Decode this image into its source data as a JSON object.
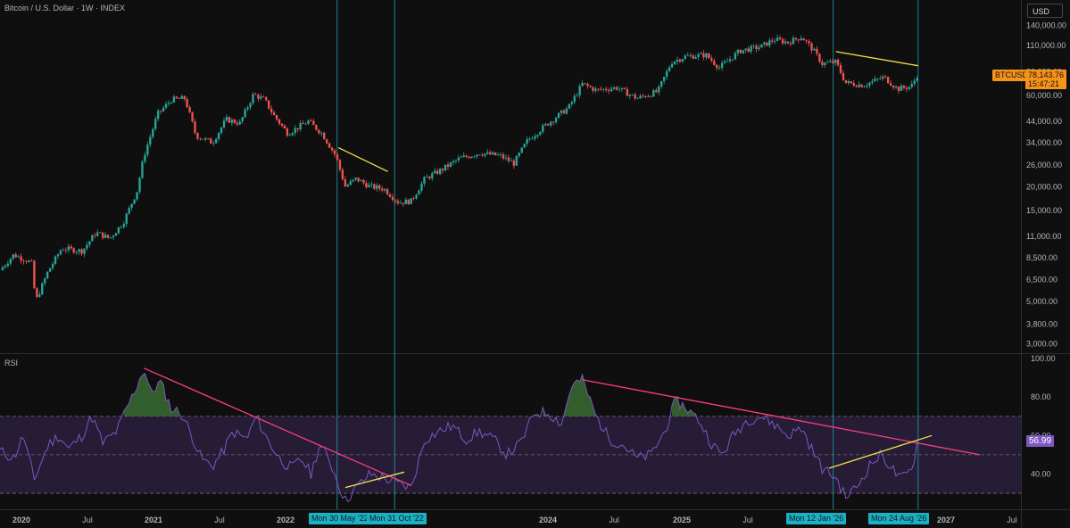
{
  "header": {
    "symbol_title": "Bitcoin / U.S. Dollar · 1W · INDEX",
    "currency": "USD"
  },
  "price_tags": {
    "symbol": "BTCUSD",
    "price": "78,143.76",
    "countdown": "15:47:21"
  },
  "rsi_panel": {
    "title": "RSI",
    "value_label": "56.99"
  },
  "colors": {
    "background": "#0f0f0f",
    "up_candle": "#26a69a",
    "down_candle": "#ef5350",
    "rsi_line": "#7e57c2",
    "rsi_band": "#2a1f3d",
    "vertical_markers": "#1e90a0",
    "trendline_yellow": "#f5e14a",
    "trendline_pink": "#ff3d7f",
    "price_tag": "#f7931a",
    "date_tag": "#1cb0c6"
  },
  "x_axis_labels": [
    "2020",
    "Jul",
    "2021",
    "Jul",
    "2022",
    "Jul",
    "2024",
    "Jul",
    "2025",
    "Jul",
    "2027",
    "Jul"
  ],
  "date_markers": [
    "Mon 30 May '22",
    "Mon 31 Oct '22",
    "Mon 12 Jan '26",
    "Mon 24 Aug '26"
  ],
  "chart_data": [
    {
      "type": "candlestick",
      "title": "Bitcoin / U.S. Dollar · 1W · INDEX",
      "scale": "log",
      "y_ticks": [
        "140,000.00",
        "110,000.00",
        "80,000.00",
        "60,000.00",
        "44,000.00",
        "34,000.00",
        "26,000.00",
        "20,000.00",
        "15,000.00",
        "11,000.00",
        "8,500.00",
        "6,500.00",
        "5,000.00",
        "3,800.00",
        "3,000.00"
      ],
      "y_tick_values": [
        140000,
        110000,
        80000,
        60000,
        44000,
        34000,
        26000,
        20000,
        15000,
        11000,
        8500,
        6500,
        5000,
        3800,
        3000
      ],
      "ylim": [
        2800,
        150000
      ],
      "x_range_years": [
        2019.95,
        2027.4
      ],
      "last_close": 78143.76,
      "approx_weekly_closes": [
        {
          "t": 2019.95,
          "close": 7300
        },
        {
          "t": 2020.05,
          "close": 8800
        },
        {
          "t": 2020.18,
          "close": 8000
        },
        {
          "t": 2020.21,
          "close": 5000
        },
        {
          "t": 2020.3,
          "close": 7200
        },
        {
          "t": 2020.4,
          "close": 9500
        },
        {
          "t": 2020.55,
          "close": 9200
        },
        {
          "t": 2020.65,
          "close": 11500
        },
        {
          "t": 2020.75,
          "close": 10700
        },
        {
          "t": 2020.85,
          "close": 13000
        },
        {
          "t": 2020.95,
          "close": 19000
        },
        {
          "t": 2021.0,
          "close": 29000
        },
        {
          "t": 2021.1,
          "close": 48000
        },
        {
          "t": 2021.2,
          "close": 57000
        },
        {
          "t": 2021.3,
          "close": 58000
        },
        {
          "t": 2021.38,
          "close": 37000
        },
        {
          "t": 2021.5,
          "close": 34000
        },
        {
          "t": 2021.6,
          "close": 45000
        },
        {
          "t": 2021.7,
          "close": 43000
        },
        {
          "t": 2021.8,
          "close": 61000
        },
        {
          "t": 2021.88,
          "close": 57000
        },
        {
          "t": 2021.95,
          "close": 47000
        },
        {
          "t": 2022.05,
          "close": 38000
        },
        {
          "t": 2022.2,
          "close": 44000
        },
        {
          "t": 2022.3,
          "close": 38000
        },
        {
          "t": 2022.4,
          "close": 29000
        },
        {
          "t": 2022.47,
          "close": 20000
        },
        {
          "t": 2022.55,
          "close": 22000
        },
        {
          "t": 2022.65,
          "close": 20000
        },
        {
          "t": 2022.75,
          "close": 19500
        },
        {
          "t": 2022.86,
          "close": 16500
        },
        {
          "t": 2022.95,
          "close": 16800
        },
        {
          "t": 2023.05,
          "close": 22000
        },
        {
          "t": 2023.15,
          "close": 24000
        },
        {
          "t": 2023.3,
          "close": 28000
        },
        {
          "t": 2023.45,
          "close": 30000
        },
        {
          "t": 2023.6,
          "close": 29000
        },
        {
          "t": 2023.7,
          "close": 26500
        },
        {
          "t": 2023.8,
          "close": 35000
        },
        {
          "t": 2023.95,
          "close": 43000
        },
        {
          "t": 2024.1,
          "close": 52000
        },
        {
          "t": 2024.2,
          "close": 69000
        },
        {
          "t": 2024.3,
          "close": 64000
        },
        {
          "t": 2024.45,
          "close": 66000
        },
        {
          "t": 2024.6,
          "close": 58000
        },
        {
          "t": 2024.75,
          "close": 63000
        },
        {
          "t": 2024.85,
          "close": 90000
        },
        {
          "t": 2024.95,
          "close": 96000
        },
        {
          "t": 2025.1,
          "close": 98000
        },
        {
          "t": 2025.2,
          "close": 84000
        },
        {
          "t": 2025.35,
          "close": 103000
        },
        {
          "t": 2025.5,
          "close": 108000
        },
        {
          "t": 2025.6,
          "close": 118000
        },
        {
          "t": 2025.7,
          "close": 114000
        },
        {
          "t": 2025.8,
          "close": 122000
        },
        {
          "t": 2025.88,
          "close": 105000
        },
        {
          "t": 2025.95,
          "close": 88000
        },
        {
          "t": 2026.05,
          "close": 90000
        },
        {
          "t": 2026.12,
          "close": 70000
        },
        {
          "t": 2026.25,
          "close": 68000
        },
        {
          "t": 2026.4,
          "close": 75000
        },
        {
          "t": 2026.5,
          "close": 65000
        },
        {
          "t": 2026.6,
          "close": 67000
        },
        {
          "t": 2026.65,
          "close": 78143.76
        }
      ],
      "trendlines": [
        {
          "color": "yellow",
          "from": {
            "t": 2022.42,
            "price": 32000
          },
          "to": {
            "t": 2022.78,
            "price": 24000
          }
        },
        {
          "color": "yellow",
          "from": {
            "t": 2026.05,
            "price": 102000
          },
          "to": {
            "t": 2026.65,
            "price": 86000
          }
        }
      ]
    },
    {
      "type": "line",
      "title": "RSI",
      "ylim": [
        24,
        100
      ],
      "y_ticks": [
        "100.00",
        "80.00",
        "60.00",
        "40.00"
      ],
      "y_tick_values": [
        100,
        80,
        60,
        40
      ],
      "band": [
        30,
        70
      ],
      "midline": 50,
      "current_value": 56.99,
      "series": [
        {
          "values": [
            {
              "t": 2019.95,
              "v": 52
            },
            {
              "t": 2020.05,
              "v": 48
            },
            {
              "t": 2020.12,
              "v": 60
            },
            {
              "t": 2020.2,
              "v": 37
            },
            {
              "t": 2020.3,
              "v": 55
            },
            {
              "t": 2020.38,
              "v": 60
            },
            {
              "t": 2020.45,
              "v": 53
            },
            {
              "t": 2020.55,
              "v": 60
            },
            {
              "t": 2020.62,
              "v": 70
            },
            {
              "t": 2020.7,
              "v": 56
            },
            {
              "t": 2020.8,
              "v": 62
            },
            {
              "t": 2020.88,
              "v": 75
            },
            {
              "t": 2020.95,
              "v": 86
            },
            {
              "t": 2021.0,
              "v": 95
            },
            {
              "t": 2021.05,
              "v": 82
            },
            {
              "t": 2021.12,
              "v": 88
            },
            {
              "t": 2021.2,
              "v": 74
            },
            {
              "t": 2021.27,
              "v": 72
            },
            {
              "t": 2021.35,
              "v": 60
            },
            {
              "t": 2021.42,
              "v": 48
            },
            {
              "t": 2021.5,
              "v": 44
            },
            {
              "t": 2021.58,
              "v": 52
            },
            {
              "t": 2021.65,
              "v": 62
            },
            {
              "t": 2021.75,
              "v": 58
            },
            {
              "t": 2021.82,
              "v": 70
            },
            {
              "t": 2021.9,
              "v": 58
            },
            {
              "t": 2022.0,
              "v": 47
            },
            {
              "t": 2022.08,
              "v": 43
            },
            {
              "t": 2022.15,
              "v": 48
            },
            {
              "t": 2022.22,
              "v": 40
            },
            {
              "t": 2022.28,
              "v": 55
            },
            {
              "t": 2022.35,
              "v": 48
            },
            {
              "t": 2022.43,
              "v": 33
            },
            {
              "t": 2022.47,
              "v": 26
            },
            {
              "t": 2022.55,
              "v": 33
            },
            {
              "t": 2022.65,
              "v": 40
            },
            {
              "t": 2022.75,
              "v": 38
            },
            {
              "t": 2022.85,
              "v": 35
            },
            {
              "t": 2022.95,
              "v": 33
            },
            {
              "t": 2023.05,
              "v": 58
            },
            {
              "t": 2023.15,
              "v": 62
            },
            {
              "t": 2023.25,
              "v": 65
            },
            {
              "t": 2023.35,
              "v": 58
            },
            {
              "t": 2023.45,
              "v": 62
            },
            {
              "t": 2023.55,
              "v": 58
            },
            {
              "t": 2023.65,
              "v": 50
            },
            {
              "t": 2023.75,
              "v": 56
            },
            {
              "t": 2023.85,
              "v": 72
            },
            {
              "t": 2023.95,
              "v": 72
            },
            {
              "t": 2024.05,
              "v": 66
            },
            {
              "t": 2024.12,
              "v": 86
            },
            {
              "t": 2024.2,
              "v": 89
            },
            {
              "t": 2024.3,
              "v": 70
            },
            {
              "t": 2024.4,
              "v": 58
            },
            {
              "t": 2024.5,
              "v": 55
            },
            {
              "t": 2024.6,
              "v": 48
            },
            {
              "t": 2024.7,
              "v": 50
            },
            {
              "t": 2024.8,
              "v": 62
            },
            {
              "t": 2024.88,
              "v": 78
            },
            {
              "t": 2024.95,
              "v": 75
            },
            {
              "t": 2025.05,
              "v": 68
            },
            {
              "t": 2025.15,
              "v": 55
            },
            {
              "t": 2025.22,
              "v": 50
            },
            {
              "t": 2025.3,
              "v": 60
            },
            {
              "t": 2025.4,
              "v": 68
            },
            {
              "t": 2025.5,
              "v": 70
            },
            {
              "t": 2025.6,
              "v": 66
            },
            {
              "t": 2025.7,
              "v": 60
            },
            {
              "t": 2025.8,
              "v": 64
            },
            {
              "t": 2025.88,
              "v": 52
            },
            {
              "t": 2025.95,
              "v": 43
            },
            {
              "t": 2026.05,
              "v": 38
            },
            {
              "t": 2026.12,
              "v": 28
            },
            {
              "t": 2026.2,
              "v": 33
            },
            {
              "t": 2026.3,
              "v": 45
            },
            {
              "t": 2026.38,
              "v": 50
            },
            {
              "t": 2026.45,
              "v": 44
            },
            {
              "t": 2026.52,
              "v": 37
            },
            {
              "t": 2026.6,
              "v": 42
            },
            {
              "t": 2026.65,
              "v": 56.99
            }
          ]
        }
      ],
      "trendlines": [
        {
          "color": "pink",
          "from": {
            "t": 2021.0,
            "v": 95
          },
          "to": {
            "t": 2022.95,
            "v": 34
          }
        },
        {
          "color": "yellow",
          "from": {
            "t": 2022.47,
            "v": 33
          },
          "to": {
            "t": 2022.9,
            "v": 41
          }
        },
        {
          "color": "pink",
          "from": {
            "t": 2024.2,
            "v": 89
          },
          "to": {
            "t": 2027.1,
            "v": 50
          }
        },
        {
          "color": "yellow",
          "from": {
            "t": 2026.0,
            "v": 43
          },
          "to": {
            "t": 2026.75,
            "v": 60
          }
        }
      ]
    }
  ]
}
